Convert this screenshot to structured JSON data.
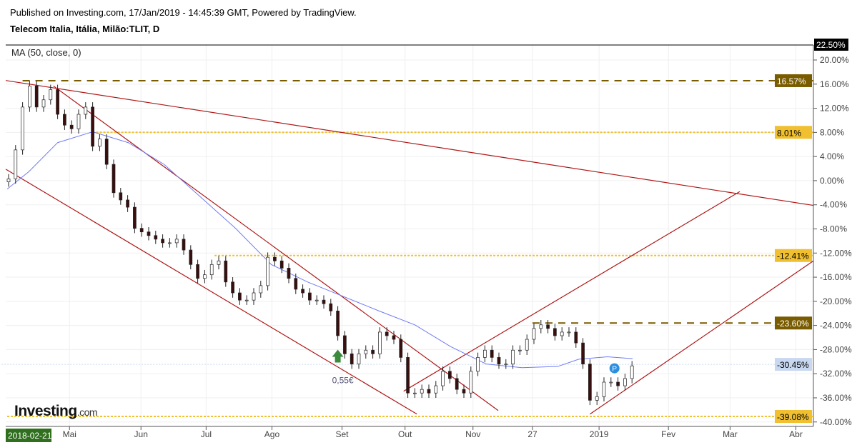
{
  "header": {
    "published": "Published on Investing.com, 17/Jan/2019 - 14:45:39 GMT, Powered by TradingView.",
    "title": "Telecom Italia, Itália, Milão:TLIT, D"
  },
  "indicator": {
    "label": "MA (50, close, 0)"
  },
  "logo": {
    "main": "Investing",
    "suffix": ".com"
  },
  "chart_data": {
    "type": "candlestick",
    "title": "Telecom Italia, Itália, Milão:TLIT, D",
    "ylabel": "%",
    "ylim": [
      -40,
      22.5
    ],
    "y_ticks": [
      "20.00%",
      "16.00%",
      "12.00%",
      "8.00%",
      "4.00%",
      "0.00%",
      "-4.00%",
      "-8.00%",
      "-12.00%",
      "-16.00%",
      "-20.00%",
      "-24.00%",
      "-28.00%",
      "-32.00%",
      "-36.00%",
      "-40.00%"
    ],
    "y_tick_values": [
      20,
      16,
      12,
      8,
      4,
      0,
      -4,
      -8,
      -12,
      -16,
      -20,
      -24,
      -28,
      -32,
      -36,
      -40
    ],
    "x_ticks": [
      {
        "label": "Mai",
        "idx": 8.7
      },
      {
        "label": "Jun",
        "idx": 18.9
      },
      {
        "label": "Jul",
        "idx": 28.2
      },
      {
        "label": "Ago",
        "idx": 37.6
      },
      {
        "label": "Set",
        "idx": 47.6
      },
      {
        "label": "Out",
        "idx": 56.6
      },
      {
        "label": "Nov",
        "idx": 66.3
      },
      {
        "label": "27",
        "idx": 74.8
      },
      {
        "label": "2019",
        "idx": 84.3
      },
      {
        "label": "Fev",
        "idx": 94.2
      },
      {
        "label": "Mar",
        "idx": 103.0
      },
      {
        "label": "Abr",
        "idx": 112.4
      }
    ],
    "start_date": "2018-02-21",
    "closes": [
      0.3,
      5.1,
      12.2,
      15.7,
      12.2,
      13.4,
      15.1,
      11.0,
      9.2,
      8.6,
      11.0,
      12.2,
      5.7,
      6.9,
      2.7,
      -2.0,
      -3.2,
      -4.4,
      -7.9,
      -8.5,
      -9.1,
      -9.7,
      -10.3,
      -10.3,
      -9.7,
      -11.5,
      -13.9,
      -16.2,
      -15.6,
      -13.9,
      -13.3,
      -16.8,
      -18.6,
      -19.8,
      -19.8,
      -18.6,
      -17.4,
      -12.7,
      -13.3,
      -14.5,
      -16.2,
      -18.0,
      -18.6,
      -19.8,
      -19.8,
      -20.4,
      -21.6,
      -25.7,
      -28.7,
      -30.4,
      -28.7,
      -28.1,
      -28.7,
      -25.1,
      -25.7,
      -26.3,
      -29.3,
      -35.2,
      -35.2,
      -34.6,
      -35.2,
      -34.0,
      -31.6,
      -32.8,
      -34.6,
      -35.2,
      -31.6,
      -29.3,
      -28.1,
      -29.3,
      -30.4,
      -30.4,
      -28.1,
      -28.1,
      -26.3,
      -24.5,
      -23.9,
      -24.5,
      -25.7,
      -25.1,
      -25.1,
      -26.9,
      -30.4,
      -36.4,
      -35.8,
      -33.4,
      -33.4,
      -34.0,
      -32.8,
      -30.7
    ],
    "ma50": [
      [
        -0.2,
        -1.4
      ],
      [
        2.9,
        1.5
      ],
      [
        7,
        6.3
      ],
      [
        12,
        8.1
      ],
      [
        17.1,
        6.3
      ],
      [
        22.2,
        2.7
      ],
      [
        27.3,
        -2.6
      ],
      [
        32.4,
        -7.9
      ],
      [
        37.5,
        -13.9
      ],
      [
        42.7,
        -16.8
      ],
      [
        47.8,
        -19.2
      ],
      [
        52.9,
        -21.6
      ],
      [
        58,
        -23.9
      ],
      [
        63.1,
        -27.5
      ],
      [
        68.2,
        -30.4
      ],
      [
        73.3,
        -31
      ],
      [
        78.4,
        -30.8
      ],
      [
        81.4,
        -29.6
      ],
      [
        85.5,
        -29.2
      ],
      [
        89.1,
        -29.5
      ]
    ],
    "trendlines": [
      [
        [
          -0.4,
          16.6
        ],
        [
          114.9,
          -4.1
        ]
      ],
      [
        [
          -0.4,
          1.9
        ],
        [
          58.3,
          -38.7
        ]
      ],
      [
        [
          6.4,
          15.7
        ],
        [
          69.9,
          -38.1
        ]
      ],
      [
        [
          56.4,
          -34.9
        ],
        [
          104.4,
          -1.8
        ]
      ],
      [
        [
          83.0,
          -38.7
        ],
        [
          114.9,
          -13.3
        ]
      ]
    ],
    "levels": [
      {
        "value": 16.57,
        "label": "16.57%",
        "style": "dashed",
        "color": "#7a5c00",
        "from": 2
      },
      {
        "value": 8.01,
        "label": "8.01%",
        "style": "dotted",
        "color": "#f0c030",
        "from": 12
      },
      {
        "value": -12.41,
        "label": "-12.41%",
        "style": "dotted",
        "color": "#f0c030",
        "from": 29.4
      },
      {
        "value": -23.6,
        "label": "-23.60%",
        "style": "dashed",
        "color": "#7a5c00",
        "from": 74.8
      },
      {
        "value": -39.08,
        "label": "-39.08%",
        "style": "dotted",
        "color": "#f0c030",
        "from": -0.2
      },
      {
        "value": -30.45,
        "label": "-30.45%",
        "style": "thin",
        "color": "#c8d8f0",
        "from": -1
      }
    ],
    "max_label": "22.50%",
    "annotations": {
      "arrow_idx": 47,
      "arrow_value": -29.2,
      "price_note": "0,55€",
      "badge": "P",
      "badge_idx": 86.5,
      "badge_value": -31.1
    }
  }
}
